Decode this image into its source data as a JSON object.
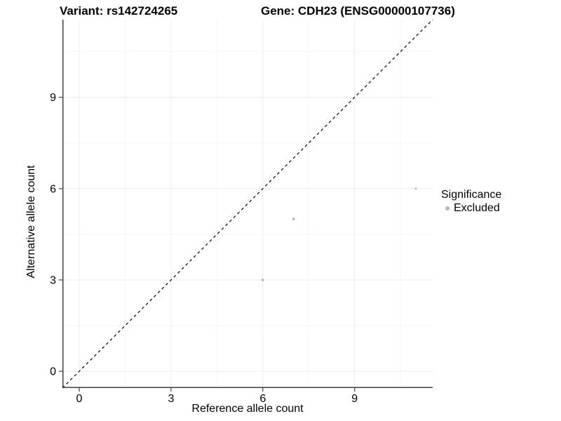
{
  "title_left": "Variant: rs142724265",
  "title_right": "Gene: CDH23 (ENSG00000107736)",
  "x_axis_label": "Reference allele count",
  "y_axis_label": "Alternative allele count",
  "legend": {
    "title": "Significance",
    "items": [
      {
        "label": "Excluded",
        "color": "#b5b5b5"
      }
    ]
  },
  "colors": {
    "background": "#ffffff",
    "grid_major": "#ebebeb",
    "grid_minor": "#f5f5f5",
    "axis_line": "#404040",
    "tick_mark": "#404040",
    "tick_text": "#000000",
    "point": "#b5b5b5",
    "identity_line": "#000000"
  },
  "chart_data": {
    "type": "scatter",
    "title": "Variant: rs142724265 | Gene: CDH23 (ENSG00000107736)",
    "xlabel": "Reference allele count",
    "ylabel": "Alternative allele count",
    "xlim": [
      -0.55,
      11.55
    ],
    "ylim": [
      -0.55,
      11.55
    ],
    "x_ticks": [
      0,
      3,
      6,
      9
    ],
    "y_ticks": [
      0,
      3,
      6,
      9
    ],
    "x_minor_ticks": [
      1.5,
      4.5,
      7.5,
      10.5
    ],
    "y_minor_ticks": [
      1.5,
      4.5,
      7.5,
      10.5
    ],
    "grid": true,
    "legend_position": "right",
    "legend_title": "Significance",
    "series": [
      {
        "name": "Excluded",
        "color": "#b5b5b5",
        "points": [
          {
            "x": 6,
            "y": 3,
            "r": 1.8
          },
          {
            "x": 7,
            "y": 5,
            "r": 1.8
          },
          {
            "x": 11,
            "y": 6,
            "r": 1.5
          }
        ]
      }
    ],
    "reference_line": {
      "kind": "identity",
      "equation": "y = x",
      "style": "dashed",
      "color": "#000000"
    }
  }
}
